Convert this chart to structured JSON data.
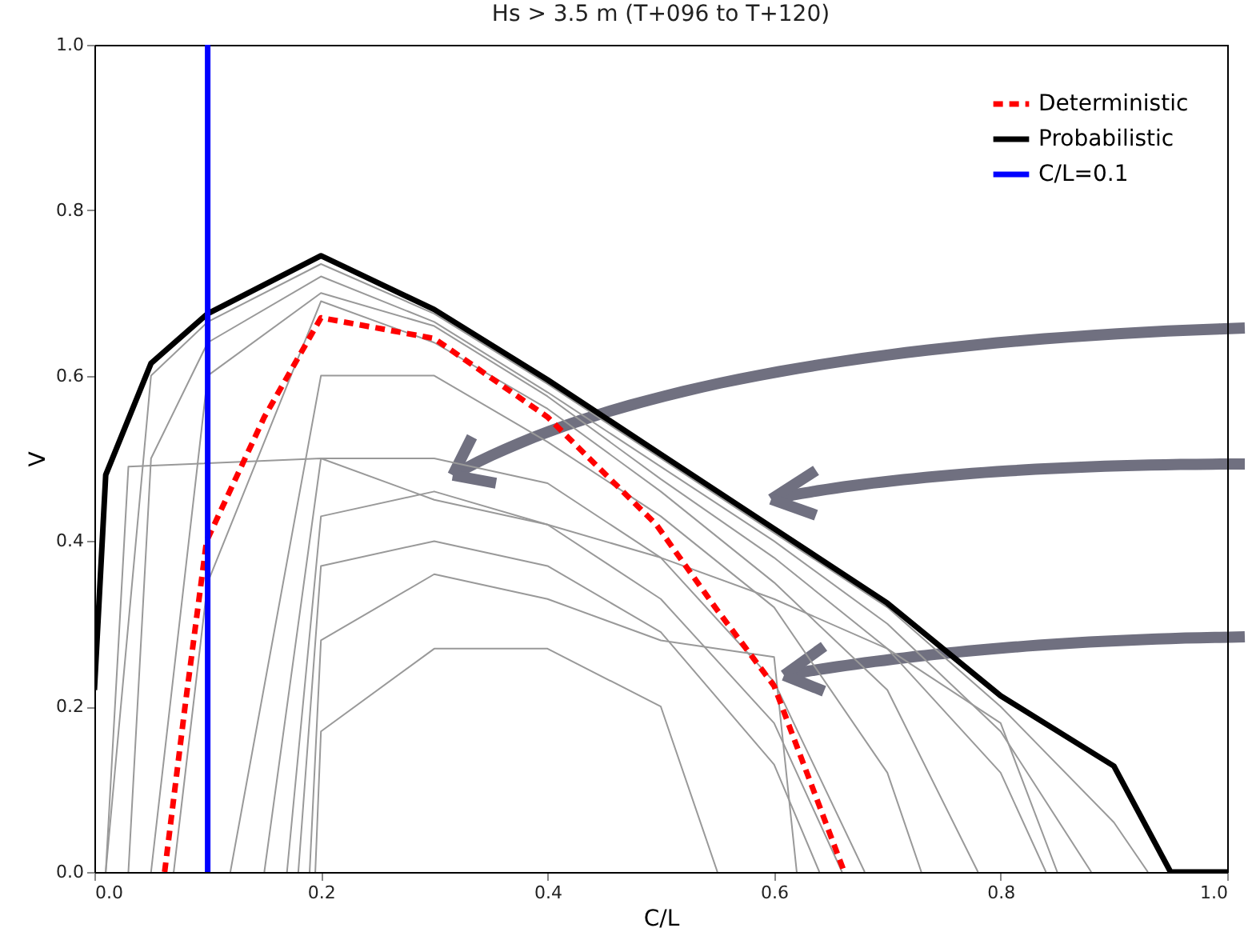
{
  "chart_data": {
    "type": "line",
    "title": "Hs >  3.5 m (T+096 to T+120)",
    "xlabel": "C/L",
    "ylabel": "V",
    "xlim": [
      0,
      1.0
    ],
    "ylim": [
      0,
      1.0
    ],
    "xticks": [
      {
        "value": 0,
        "label": "0.0"
      },
      0.2,
      0.4,
      0.6,
      0.8,
      {
        "value": 1,
        "label": "1.0"
      }
    ],
    "yticks": [
      {
        "value": 0,
        "label": "0.0"
      },
      0.2,
      0.4,
      0.6,
      0.8,
      {
        "value": 1,
        "label": "1.0"
      }
    ],
    "legend": "top right",
    "grid": false,
    "series": [
      {
        "color": "#999999",
        "x": [
          0.01,
          0.05,
          0.1,
          0.2,
          0.3,
          0.4,
          0.5,
          0.6,
          0.7,
          0.8,
          0.9,
          0.93
        ],
        "values": [
          0,
          0.6,
          0.665,
          0.735,
          0.675,
          0.59,
          0.5,
          0.41,
          0.32,
          0.2,
          0.06,
          0
        ]
      },
      {
        "color": "#999999",
        "x": [
          0.03,
          0.05,
          0.1,
          0.2,
          0.3,
          0.4,
          0.5,
          0.6,
          0.7,
          0.8,
          0.88
        ],
        "values": [
          0,
          0.5,
          0.64,
          0.72,
          0.665,
          0.58,
          0.49,
          0.4,
          0.3,
          0.17,
          0
        ]
      },
      {
        "color": "#999999",
        "x": [
          0.05,
          0.1,
          0.2,
          0.3,
          0.4,
          0.5,
          0.6,
          0.7,
          0.8,
          0.84
        ],
        "values": [
          0,
          0.6,
          0.7,
          0.66,
          0.575,
          0.475,
          0.38,
          0.27,
          0.12,
          0
        ]
      },
      {
        "color": "#999999",
        "x": [
          0.07,
          0.1,
          0.2,
          0.3,
          0.4,
          0.5,
          0.6,
          0.7,
          0.78
        ],
        "values": [
          0,
          0.35,
          0.69,
          0.64,
          0.56,
          0.46,
          0.35,
          0.22,
          0
        ]
      },
      {
        "color": "#999999",
        "x": [
          0.01,
          0.03,
          0.2,
          0.3,
          0.4,
          0.5,
          0.6,
          0.7,
          0.8,
          0.85
        ],
        "values": [
          0,
          0.49,
          0.5,
          0.45,
          0.42,
          0.38,
          0.33,
          0.27,
          0.18,
          0
        ]
      },
      {
        "color": "#999999",
        "x": [
          0.12,
          0.2,
          0.3,
          0.4,
          0.5,
          0.6,
          0.7,
          0.73
        ],
        "values": [
          0,
          0.6,
          0.6,
          0.52,
          0.43,
          0.32,
          0.12,
          0
        ]
      },
      {
        "color": "#999999",
        "x": [
          0.15,
          0.2,
          0.3,
          0.4,
          0.5,
          0.6,
          0.68
        ],
        "values": [
          0,
          0.5,
          0.5,
          0.47,
          0.38,
          0.23,
          0
        ]
      },
      {
        "color": "#999999",
        "x": [
          0.17,
          0.2,
          0.3,
          0.4,
          0.5,
          0.6,
          0.66
        ],
        "values": [
          0,
          0.43,
          0.46,
          0.42,
          0.33,
          0.18,
          0
        ]
      },
      {
        "color": "#999999",
        "x": [
          0.18,
          0.2,
          0.3,
          0.4,
          0.5,
          0.6,
          0.64
        ],
        "values": [
          0,
          0.37,
          0.4,
          0.37,
          0.29,
          0.13,
          0
        ]
      },
      {
        "color": "#999999",
        "x": [
          0.19,
          0.2,
          0.3,
          0.4,
          0.5,
          0.6,
          0.62
        ],
        "values": [
          0,
          0.28,
          0.36,
          0.33,
          0.28,
          0.26,
          0
        ]
      },
      {
        "color": "#999999",
        "x": [
          0.195,
          0.2,
          0.3,
          0.4,
          0.5,
          0.55
        ],
        "values": [
          0,
          0.17,
          0.27,
          0.27,
          0.2,
          0
        ]
      },
      {
        "name": "Deterministic",
        "color": "#ff0000",
        "line_style": "dashed",
        "x": [
          0.062,
          0.08,
          0.099,
          0.15,
          0.2,
          0.3,
          0.4,
          0.496,
          0.548,
          0.6,
          0.662
        ],
        "values": [
          0,
          0.2,
          0.4,
          0.55,
          0.67,
          0.645,
          0.55,
          0.42,
          0.32,
          0.225,
          0
        ]
      },
      {
        "name": "Probabilistic",
        "color": "#000000",
        "line_style": "solid",
        "x": [
          0,
          0.01,
          0.05,
          0.1,
          0.2,
          0.3,
          0.4,
          0.5,
          0.6,
          0.7,
          0.8,
          0.9,
          0.95,
          1.0
        ],
        "values": [
          0.22,
          0.48,
          0.615,
          0.675,
          0.745,
          0.68,
          0.595,
          0.505,
          0.415,
          0.325,
          0.213,
          0.128,
          0,
          0
        ]
      },
      {
        "name": "C/L=0.1",
        "color": "#0000ff",
        "line_style": "solid",
        "x": [
          0.1,
          0.1
        ],
        "values": [
          0,
          1.0
        ]
      }
    ]
  }
}
